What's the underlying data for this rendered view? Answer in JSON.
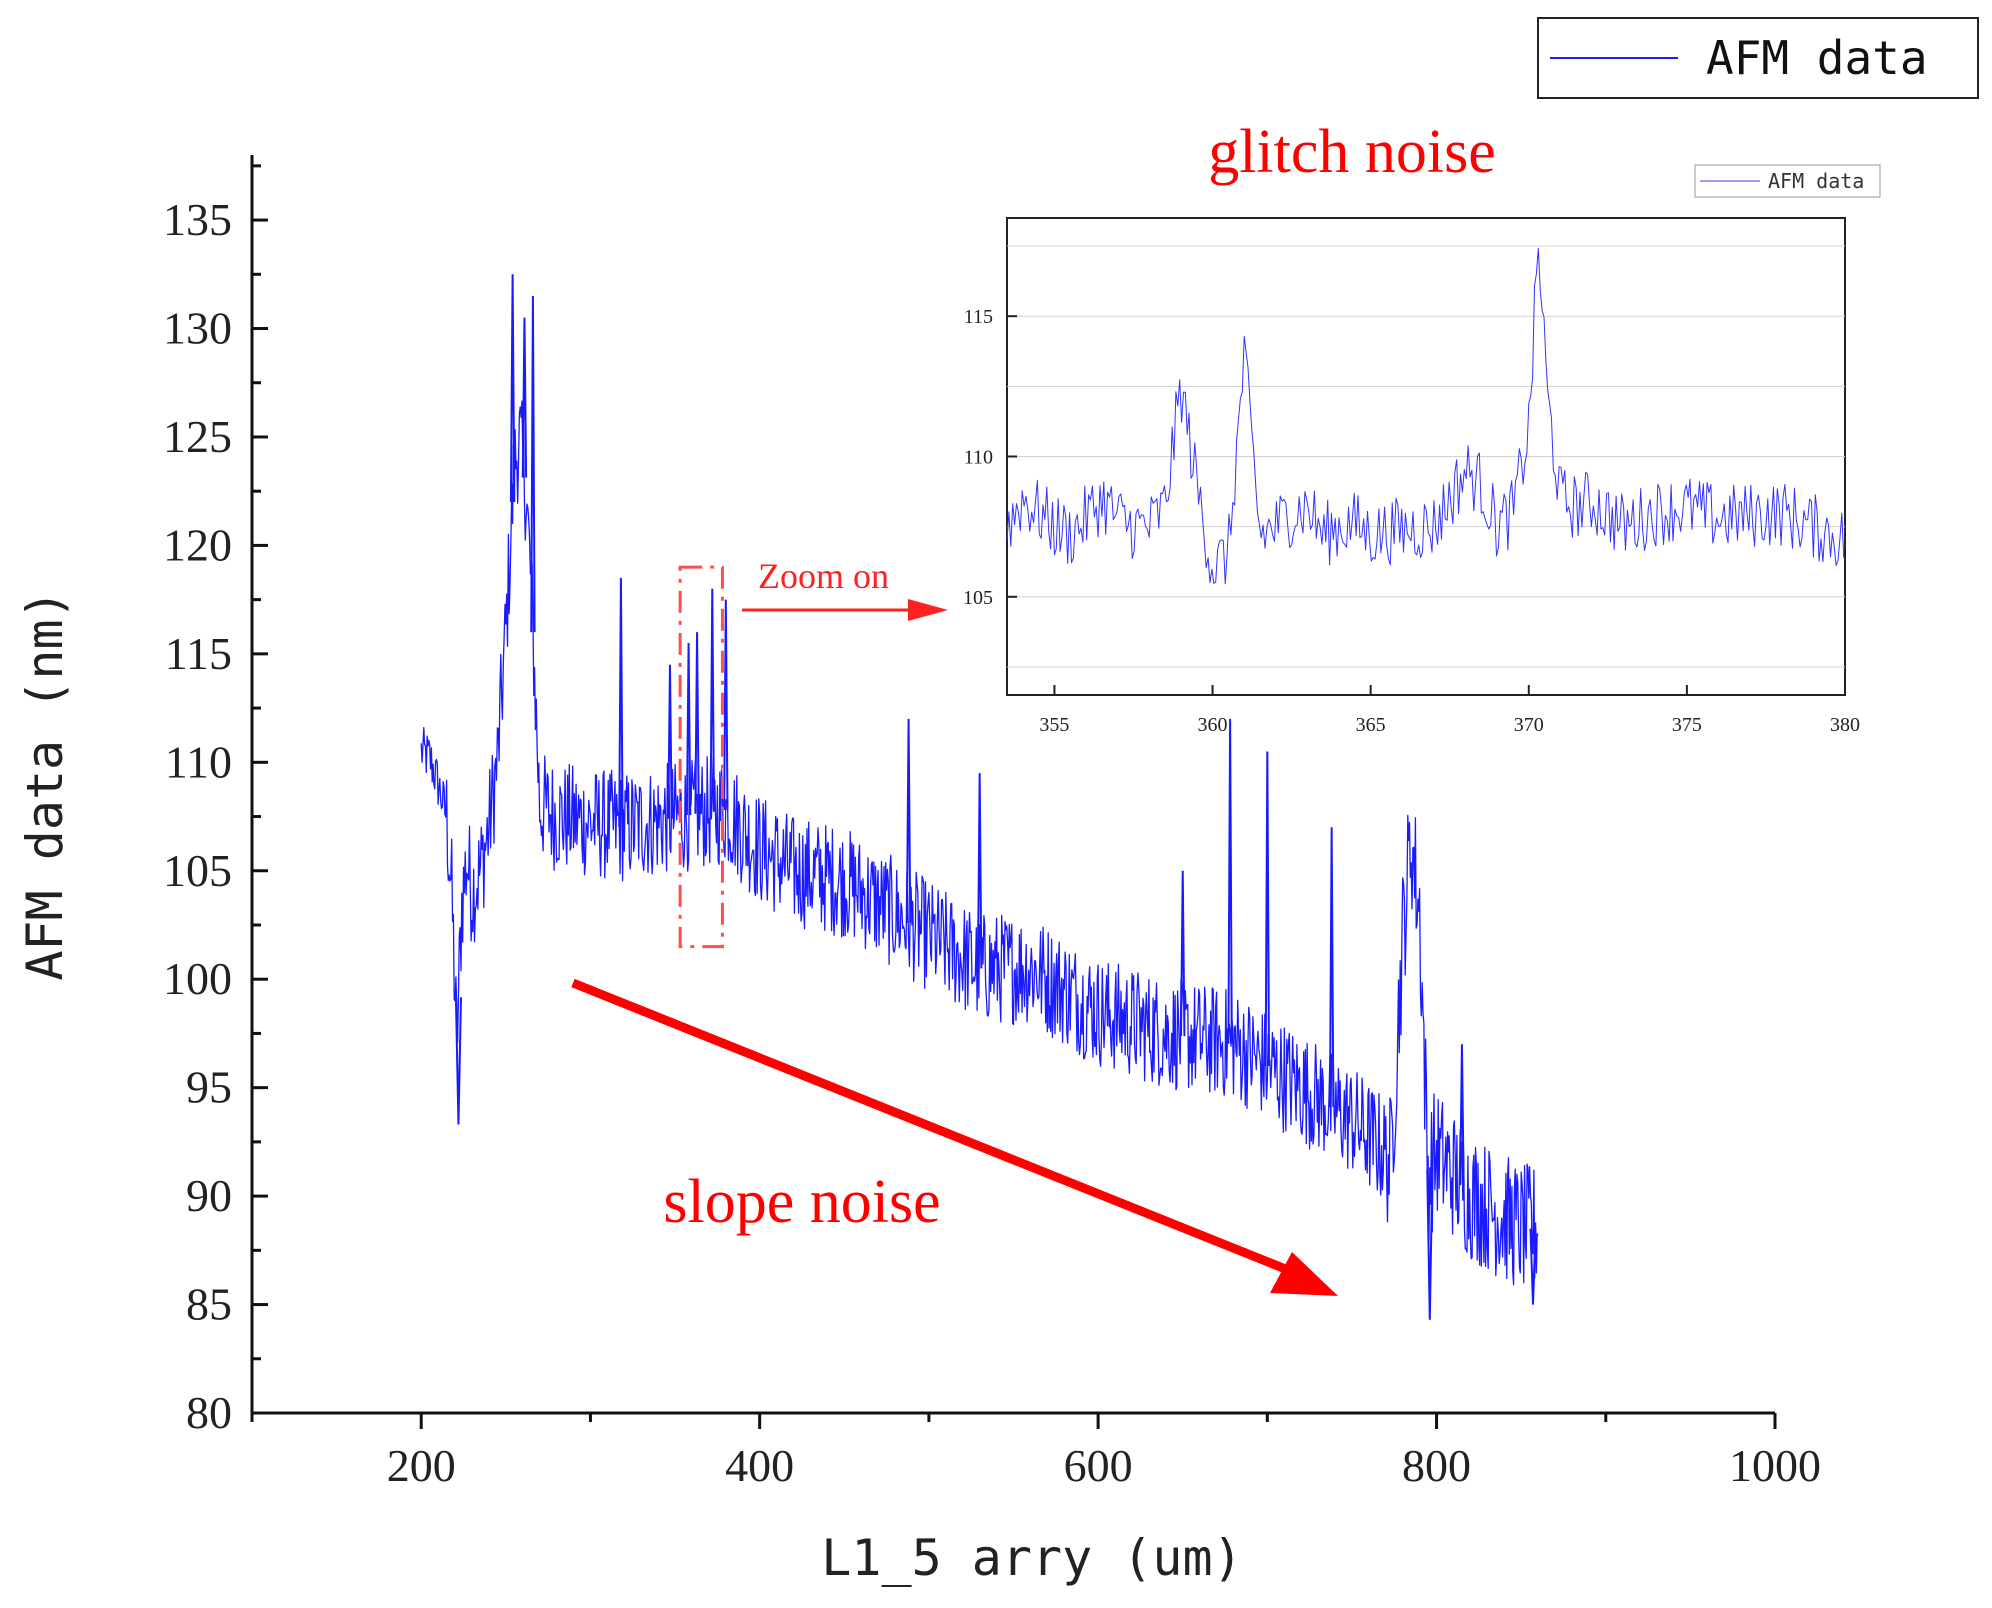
{
  "chart_data": [
    {
      "id": "main",
      "type": "line",
      "title": "",
      "xlabel": "L1_5 arry (um)",
      "ylabel": "AFM data (nm)",
      "xlim": [
        100,
        1000
      ],
      "ylim": [
        80,
        138
      ],
      "x_ticks": [
        200,
        400,
        600,
        800,
        1000
      ],
      "y_ticks": [
        80,
        85,
        90,
        95,
        100,
        105,
        110,
        115,
        120,
        125,
        130,
        135
      ],
      "grid": false,
      "legend": {
        "position": "top-right",
        "entries": [
          "AFM data"
        ]
      },
      "series": [
        {
          "name": "AFM data",
          "color": "#1a1aff",
          "x": [
            200,
            205,
            210,
            215,
            218,
            221,
            224,
            227,
            230,
            235,
            240,
            245,
            250,
            255,
            258,
            262,
            265,
            270,
            280,
            300,
            320,
            340,
            360,
            380,
            400,
            420,
            450,
            480,
            500,
            530,
            560,
            600,
            640,
            680,
            720,
            750,
            770,
            773,
            780,
            785,
            790,
            795,
            800,
            810,
            820,
            830,
            840,
            850,
            860
          ],
          "values": [
            110.5,
            110.2,
            109.0,
            107.5,
            104.0,
            97.0,
            103.5,
            105.5,
            104.0,
            105.0,
            107.0,
            110.0,
            116.0,
            123.5,
            125.0,
            122.5,
            118.0,
            108.0,
            107.5,
            107.2,
            107.0,
            107.3,
            107.6,
            107.8,
            106.0,
            105.0,
            104.5,
            103.0,
            102.0,
            100.5,
            100.5,
            98.5,
            97.5,
            97.0,
            95.0,
            93.5,
            92.0,
            91.5,
            102.0,
            106.5,
            103.0,
            91.0,
            92.0,
            91.0,
            90.0,
            89.5,
            89.0,
            88.5,
            88.5
          ]
        }
      ],
      "spikes": [
        {
          "x": 254,
          "y": 132.5
        },
        {
          "x": 261,
          "y": 130.5
        },
        {
          "x": 266,
          "y": 131.5
        },
        {
          "x": 318,
          "y": 118.5
        },
        {
          "x": 347,
          "y": 114.5
        },
        {
          "x": 358,
          "y": 115.5
        },
        {
          "x": 363,
          "y": 116.0
        },
        {
          "x": 372,
          "y": 118.0
        },
        {
          "x": 380,
          "y": 117.5
        },
        {
          "x": 488,
          "y": 112.0
        },
        {
          "x": 530,
          "y": 109.5
        },
        {
          "x": 650,
          "y": 105.0
        },
        {
          "x": 678,
          "y": 112.0
        },
        {
          "x": 700,
          "y": 110.5
        },
        {
          "x": 738,
          "y": 107.0
        },
        {
          "x": 815,
          "y": 97.0
        }
      ],
      "dips": [
        {
          "x": 222,
          "y": 93.3
        },
        {
          "x": 796,
          "y": 84.3
        },
        {
          "x": 857,
          "y": 85.0
        }
      ],
      "annotations": [
        {
          "text": "Zoom on",
          "color": "#ff2020",
          "target_x": [
            353,
            378
          ],
          "target_y": [
            101.5,
            119
          ]
        },
        {
          "text": "slope noise",
          "color": "#ff0000"
        },
        {
          "text": "glitch noise",
          "color": "#ff0000"
        }
      ]
    },
    {
      "id": "inset",
      "type": "line",
      "title": "",
      "xlabel": "",
      "ylabel": "",
      "xlim": [
        353.5,
        380
      ],
      "ylim": [
        101.5,
        118.5
      ],
      "x_ticks": [
        355,
        360,
        365,
        370,
        375,
        380
      ],
      "y_ticks": [
        105,
        110,
        115
      ],
      "grid": true,
      "legend": {
        "position": "top-right",
        "entries": [
          "AFM data"
        ]
      },
      "series": [
        {
          "name": "AFM data",
          "color": "#3333ff",
          "x": [
            353.5,
            354.0,
            354.5,
            355.0,
            355.5,
            356.0,
            356.5,
            357.0,
            357.5,
            358.0,
            358.5,
            359.0,
            359.5,
            360.0,
            360.5,
            361.0,
            361.5,
            362.0,
            362.5,
            363.0,
            363.5,
            364.0,
            364.5,
            365.0,
            366.0,
            367.0,
            368.0,
            368.5,
            369.0,
            369.5,
            370.0,
            370.3,
            370.6,
            371.0,
            371.5,
            372.0,
            373.0,
            374.0,
            375.0,
            376.0,
            377.0,
            378.0,
            379.0,
            380.0
          ],
          "values": [
            107.5,
            108.5,
            108.0,
            107.5,
            107.2,
            107.8,
            108.5,
            107.8,
            107.5,
            107.5,
            108.2,
            112.5,
            109.0,
            106.0,
            106.5,
            113.5,
            107.2,
            107.5,
            108.0,
            108.2,
            107.2,
            107.5,
            107.6,
            107.2,
            107.4,
            107.5,
            109.5,
            109.0,
            107.5,
            108.0,
            111.0,
            117.5,
            112.0,
            108.5,
            108.2,
            108.4,
            107.5,
            108.0,
            108.2,
            107.8,
            107.9,
            108.0,
            107.5,
            107.0
          ]
        }
      ]
    }
  ]
}
